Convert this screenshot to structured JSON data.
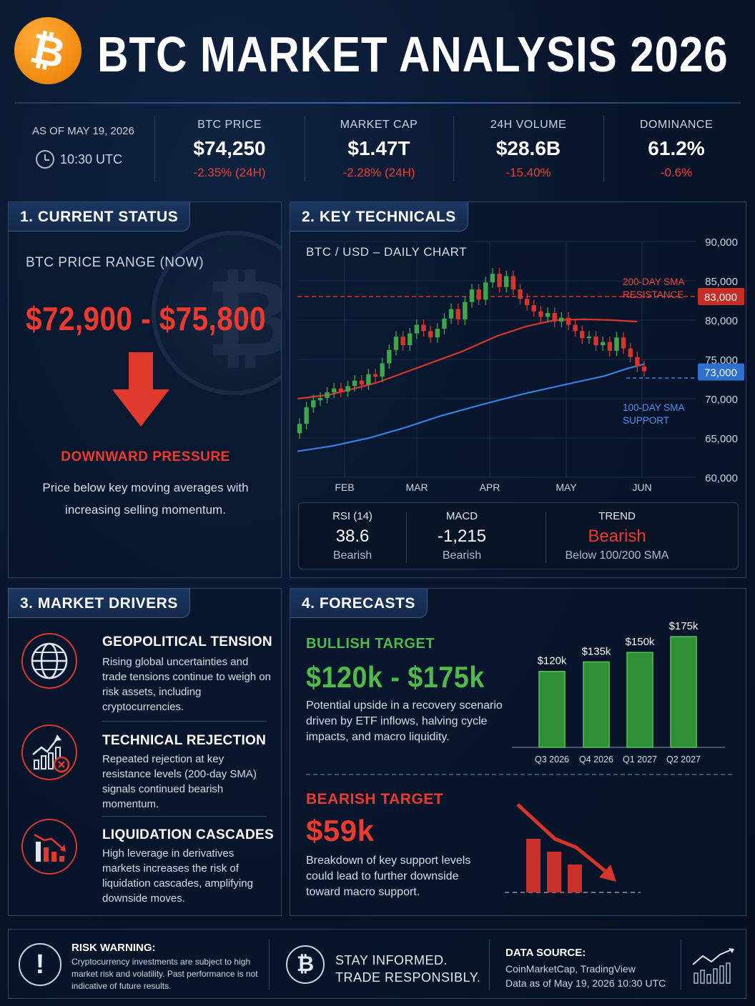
{
  "header": {
    "logo_glyph": "₿",
    "title": "BTC MARKET ANALYSIS 2026"
  },
  "stats": {
    "as_of": "AS OF MAY 19, 2026",
    "time": "10:30 UTC",
    "items": [
      {
        "label": "BTC PRICE",
        "value": "$74,250",
        "change": "-2.35% (24H)"
      },
      {
        "label": "MARKET CAP",
        "value": "$1.47T",
        "change": "-2.28% (24H)"
      },
      {
        "label": "24H VOLUME",
        "value": "$28.6B",
        "change": "-15.40%"
      },
      {
        "label": "DOMINANCE",
        "value": "61.2%",
        "change": "-0.6%"
      }
    ]
  },
  "current_status": {
    "tab": "1. CURRENT STATUS",
    "range_label": "BTC PRICE RANGE (NOW)",
    "range": "$72,900 - $75,800",
    "pressure": "DOWNWARD PRESSURE",
    "description": "Price below key moving averages with increasing selling momentum."
  },
  "key_technicals": {
    "tab": "2. KEY TECHNICALS",
    "chart_title": "BTC / USD – DAILY CHART",
    "indicators": [
      {
        "label": "RSI (14)",
        "value": "38.6",
        "sub": "Bearish"
      },
      {
        "label": "MACD",
        "value": "-1,215",
        "sub": "Bearish"
      },
      {
        "label": "TREND",
        "value": "Bearish",
        "sub": "Below 100/200 SMA"
      }
    ]
  },
  "chart_data": [
    {
      "type": "candlestick",
      "title": "BTC / USD – DAILY CHART",
      "x_ticks": [
        "FEB",
        "MAR",
        "APR",
        "MAY",
        "JUN"
      ],
      "y_ticks": [
        60000,
        65000,
        70000,
        75000,
        80000,
        85000,
        90000
      ],
      "ylim": [
        60000,
        90000
      ],
      "close": [
        66800,
        68900,
        69800,
        70100,
        70800,
        71300,
        70900,
        71600,
        72300,
        71800,
        73100,
        72800,
        74500,
        76200,
        77900,
        76800,
        78300,
        79400,
        78600,
        77800,
        78900,
        80200,
        81400,
        80100,
        82300,
        83900,
        82600,
        84800,
        85900,
        84200,
        85600,
        83900,
        82700,
        81900,
        81100,
        80400,
        80900,
        79800,
        80300,
        79400,
        78600,
        77700,
        77900,
        76800,
        77200,
        76100,
        77800,
        76400,
        75300,
        74100,
        73500
      ],
      "series": [
        {
          "name": "200-DAY SMA",
          "values": [
            70000,
            70500,
            72000,
            74000,
            76000,
            78000,
            79200,
            80000,
            80100,
            80000,
            79800
          ]
        },
        {
          "name": "100-DAY SMA",
          "values": [
            63300,
            64000,
            65000,
            66300,
            67800,
            69300,
            70700,
            71900,
            72900,
            73800,
            74400
          ]
        }
      ],
      "annotations": [
        {
          "text": "200-DAY SMA RESISTANCE",
          "level": 83000,
          "label": "83,000"
        },
        {
          "text": "100-DAY SMA SUPPORT",
          "level": 73000,
          "label": "73,000"
        }
      ],
      "annotation_lines": [
        "200-DAY SMA",
        "RESISTANCE",
        "100-DAY SMA",
        "SUPPORT"
      ],
      "colors": {
        "up": "#3ea548",
        "down": "#d6352b",
        "sma200": "#d9372b",
        "sma100": "#3a7ee0"
      }
    },
    {
      "type": "bar",
      "categories": [
        "Q3 2026",
        "Q4 2026",
        "Q1 2027",
        "Q2 2027"
      ],
      "values": [
        120,
        135,
        150,
        175
      ],
      "labels": [
        "$120k",
        "$135k",
        "$150k",
        "$175k"
      ],
      "ylim": [
        0,
        175
      ]
    }
  ],
  "market_drivers": {
    "tab": "3. MARKET DRIVERS",
    "items": [
      {
        "title": "GEOPOLITICAL TENSION",
        "text": "Rising global uncertainties and trade tensions continue to weigh on risk assets, including cryptocurrencies.",
        "icon": "globe-icon"
      },
      {
        "title": "TECHNICAL REJECTION",
        "text": "Repeated rejection at key resistance levels (200-day SMA) signals continued bearish momentum.",
        "icon": "rejection-chart-icon"
      },
      {
        "title": "LIQUIDATION CASCADES",
        "text": "High leverage in derivatives markets increases the risk of liquidation cascades, amplifying downside moves.",
        "icon": "falling-bars-icon"
      }
    ]
  },
  "forecasts": {
    "tab": "4. FORECASTS",
    "bull_label": "BULLISH TARGET",
    "bull_value": "$120k - $175k",
    "bull_text": "Potential upside in a recovery scenario driven by ETF inflows, halving cycle impacts, and macro liquidity.",
    "bear_label": "BEARISH TARGET",
    "bear_value": "$59k",
    "bear_text": "Breakdown of key support levels could lead to further downside toward macro support."
  },
  "footer": {
    "warn_title": "RISK WARNING:",
    "warn_text": "Cryptocurrency investments are subject to high market risk and volatility. Past performance is not indicative of future results.",
    "stay_1": "STAY INFORMED.",
    "stay_2": "TRADE RESPONSIBLY.",
    "source_title": "DATA SOURCE:",
    "source_1": "CoinMarketCap, TradingView",
    "source_2": "Data as of May 19, 2026 10:30 UTC"
  }
}
